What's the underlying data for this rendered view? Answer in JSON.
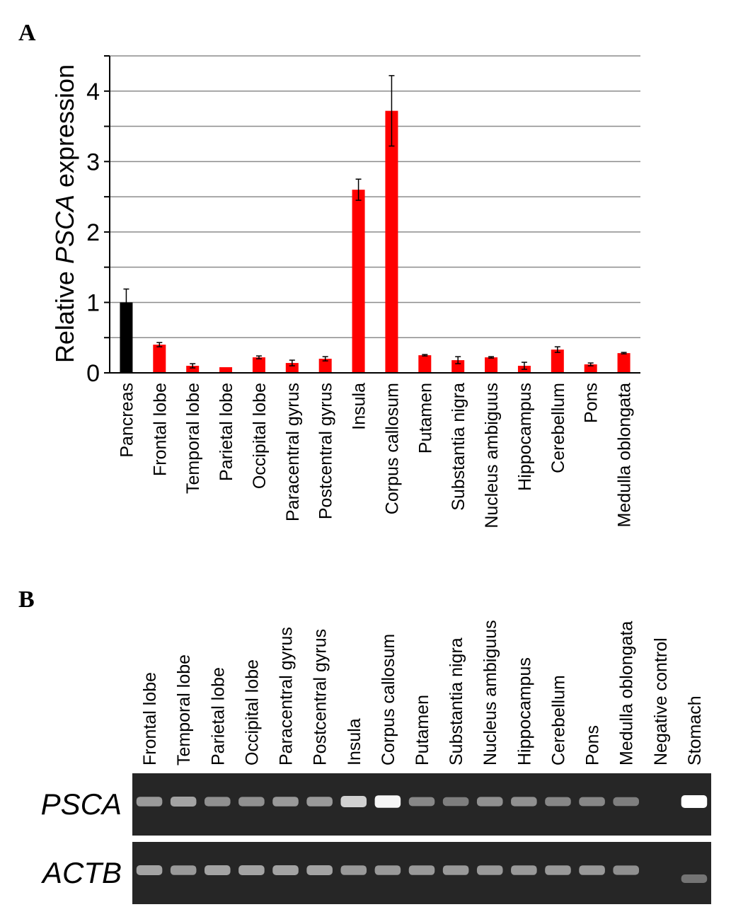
{
  "panels": {
    "a": "A",
    "b": "B"
  },
  "chart_data": {
    "type": "bar",
    "ylabel": {
      "pre": "Relative ",
      "gene": "PSCA",
      "post": " expression"
    },
    "ylim": [
      0,
      4.5
    ],
    "yticks": [
      0,
      1,
      2,
      3,
      4
    ],
    "grid": true,
    "categories": [
      "Pancreas",
      "Frontal lobe",
      "Temporal lobe",
      "Parietal lobe",
      "Occipital lobe",
      "Paracentral gyrus",
      "Postcentral gyrus",
      "Insula",
      "Corpus callosum",
      "Putamen",
      "Substantia nigra",
      "Nucleus ambiguus",
      "Hippocampus",
      "Cerebellum",
      "Pons",
      "Medulla oblongata"
    ],
    "values": [
      1.0,
      0.4,
      0.1,
      0.08,
      0.22,
      0.14,
      0.2,
      2.6,
      3.72,
      0.25,
      0.18,
      0.22,
      0.1,
      0.33,
      0.12,
      0.28
    ],
    "errors": [
      0.19,
      0.03,
      0.03,
      0.0,
      0.02,
      0.04,
      0.03,
      0.15,
      0.5,
      0.01,
      0.05,
      0.01,
      0.05,
      0.04,
      0.02,
      0.01
    ],
    "colors": [
      "#000000",
      "#ff0000",
      "#ff0000",
      "#ff0000",
      "#ff0000",
      "#ff0000",
      "#ff0000",
      "#ff0000",
      "#ff0000",
      "#ff0000",
      "#ff0000",
      "#ff0000",
      "#ff0000",
      "#ff0000",
      "#ff0000",
      "#ff0000"
    ]
  },
  "gel": {
    "lanes": [
      "Frontal lobe",
      "Temporal lobe",
      "Parietal lobe",
      "Occipital lobe",
      "Paracentral gyrus",
      "Postcentral gyrus",
      "Insula",
      "Corpus callosum",
      "Putamen",
      "Substantia nigra",
      "Nucleus ambiguus",
      "Hippocampus",
      "Cerebellum",
      "Pons",
      "Medulla oblongata",
      "Negative control",
      "Stomach"
    ],
    "rows": [
      {
        "label": "PSCA",
        "intensity": [
          0.45,
          0.5,
          0.4,
          0.4,
          0.45,
          0.45,
          0.75,
          0.95,
          0.35,
          0.3,
          0.4,
          0.4,
          0.35,
          0.35,
          0.3,
          0,
          1.0
        ]
      },
      {
        "label": "ACTB",
        "intensity": [
          0.5,
          0.45,
          0.5,
          0.5,
          0.5,
          0.5,
          0.45,
          0.45,
          0.45,
          0.45,
          0.45,
          0.45,
          0.45,
          0.45,
          0.4,
          0,
          0.25
        ]
      }
    ]
  }
}
